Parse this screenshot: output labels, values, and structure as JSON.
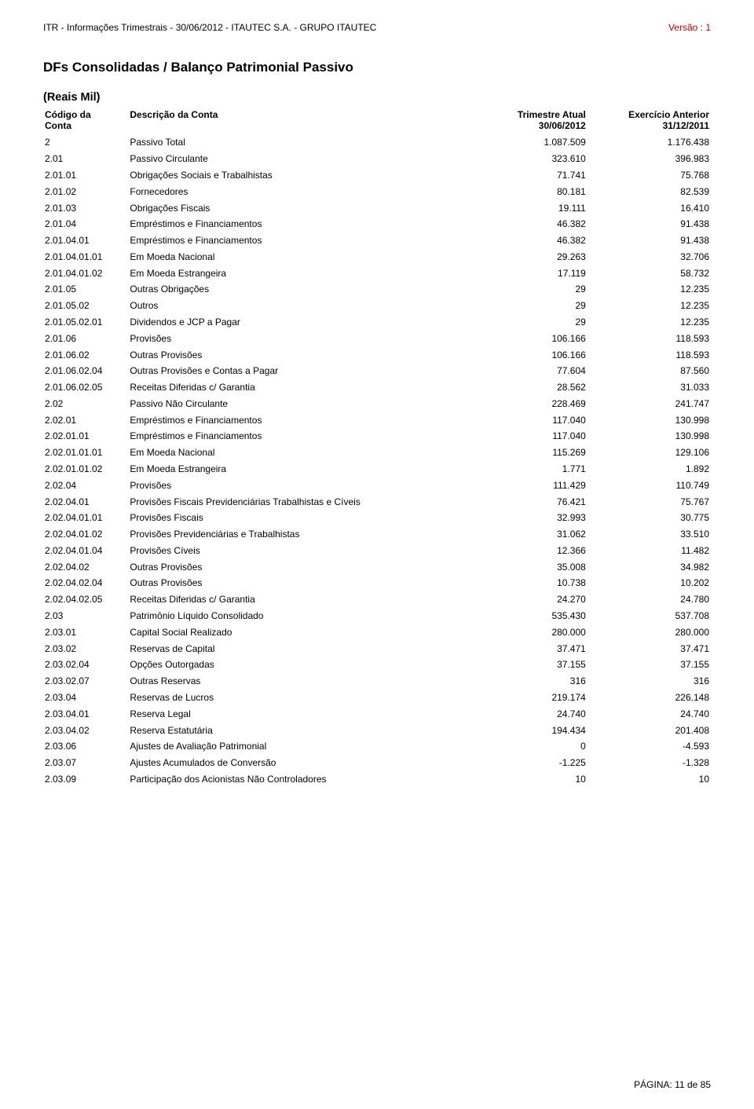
{
  "header": {
    "left": "ITR - Informações Trimestrais - 30/06/2012 - ITAUTEC S.A. - GRUPO ITAUTEC",
    "right": "Versão : 1",
    "right_color": "#c00000"
  },
  "section_title": "DFs Consolidadas / Balanço Patrimonial Passivo",
  "sub_title": "(Reais Mil)",
  "columns": {
    "code_l1": "Código da",
    "code_l2": "Conta",
    "desc": "Descrição da Conta",
    "cur_l1": "Trimestre Atual",
    "cur_l2": "30/06/2012",
    "prev_l1": "Exercício Anterior",
    "prev_l2": "31/12/2011"
  },
  "rows": [
    {
      "c": "2",
      "d": "Passivo Total",
      "a": "1.087.509",
      "b": "1.176.438"
    },
    {
      "c": "2.01",
      "d": "Passivo Circulante",
      "a": "323.610",
      "b": "396.983"
    },
    {
      "c": "2.01.01",
      "d": "Obrigações Sociais e Trabalhistas",
      "a": "71.741",
      "b": "75.768"
    },
    {
      "c": "2.01.02",
      "d": "Fornecedores",
      "a": "80.181",
      "b": "82.539"
    },
    {
      "c": "2.01.03",
      "d": "Obrigações Fiscais",
      "a": "19.111",
      "b": "16.410"
    },
    {
      "c": "2.01.04",
      "d": "Empréstimos e Financiamentos",
      "a": "46.382",
      "b": "91.438"
    },
    {
      "c": "2.01.04.01",
      "d": "Empréstimos e Financiamentos",
      "a": "46.382",
      "b": "91.438"
    },
    {
      "c": "2.01.04.01.01",
      "d": "Em Moeda Nacional",
      "a": "29.263",
      "b": "32.706"
    },
    {
      "c": "2.01.04.01.02",
      "d": "Em Moeda Estrangeira",
      "a": "17.119",
      "b": "58.732"
    },
    {
      "c": "2.01.05",
      "d": "Outras Obrigações",
      "a": "29",
      "b": "12.235"
    },
    {
      "c": "2.01.05.02",
      "d": "Outros",
      "a": "29",
      "b": "12.235"
    },
    {
      "c": "2.01.05.02.01",
      "d": "Dividendos e JCP a Pagar",
      "a": "29",
      "b": "12.235"
    },
    {
      "c": "2.01.06",
      "d": "Provisões",
      "a": "106.166",
      "b": "118.593"
    },
    {
      "c": "2.01.06.02",
      "d": "Outras Provisões",
      "a": "106.166",
      "b": "118.593"
    },
    {
      "c": "2.01.06.02.04",
      "d": "Outras Provisões e Contas a Pagar",
      "a": "77.604",
      "b": "87.560"
    },
    {
      "c": "2.01.06.02.05",
      "d": "Receitas Diferidas c/ Garantia",
      "a": "28.562",
      "b": "31.033"
    },
    {
      "c": "2.02",
      "d": "Passivo Não Circulante",
      "a": "228.469",
      "b": "241.747"
    },
    {
      "c": "2.02.01",
      "d": "Empréstimos e Financiamentos",
      "a": "117.040",
      "b": "130.998"
    },
    {
      "c": "2.02.01.01",
      "d": "Empréstimos e Financiamentos",
      "a": "117.040",
      "b": "130.998"
    },
    {
      "c": "2.02.01.01.01",
      "d": "Em Moeda Nacional",
      "a": "115.269",
      "b": "129.106"
    },
    {
      "c": "2.02.01.01.02",
      "d": "Em Moeda Estrangeira",
      "a": "1.771",
      "b": "1.892"
    },
    {
      "c": "2.02.04",
      "d": "Provisões",
      "a": "111.429",
      "b": "110.749"
    },
    {
      "c": "2.02.04.01",
      "d": "Provisões Fiscais Previdenciárias Trabalhistas e Cíveis",
      "a": "76.421",
      "b": "75.767"
    },
    {
      "c": "2.02.04.01.01",
      "d": "Provisões Fiscais",
      "a": "32.993",
      "b": "30.775"
    },
    {
      "c": "2.02.04.01.02",
      "d": "Provisões Previdenciárias e Trabalhistas",
      "a": "31.062",
      "b": "33.510"
    },
    {
      "c": "2.02.04.01.04",
      "d": "Provisões Cíveis",
      "a": "12.366",
      "b": "11.482"
    },
    {
      "c": "2.02.04.02",
      "d": "Outras Provisões",
      "a": "35.008",
      "b": "34.982"
    },
    {
      "c": "2.02.04.02.04",
      "d": "Outras Provisões",
      "a": "10.738",
      "b": "10.202"
    },
    {
      "c": "2.02.04.02.05",
      "d": "Receitas Diferidas c/ Garantia",
      "a": "24.270",
      "b": "24.780"
    },
    {
      "c": "2.03",
      "d": "Patrimônio Líquido Consolidado",
      "a": "535.430",
      "b": "537.708"
    },
    {
      "c": "2.03.01",
      "d": "Capital Social Realizado",
      "a": "280.000",
      "b": "280.000"
    },
    {
      "c": "2.03.02",
      "d": "Reservas de Capital",
      "a": "37.471",
      "b": "37.471"
    },
    {
      "c": "2.03.02.04",
      "d": "Opções Outorgadas",
      "a": "37.155",
      "b": "37.155"
    },
    {
      "c": "2.03.02.07",
      "d": "Outras Reservas",
      "a": "316",
      "b": "316"
    },
    {
      "c": "2.03.04",
      "d": "Reservas de Lucros",
      "a": "219.174",
      "b": "226.148"
    },
    {
      "c": "2.03.04.01",
      "d": "Reserva Legal",
      "a": "24.740",
      "b": "24.740"
    },
    {
      "c": "2.03.04.02",
      "d": "Reserva Estatutária",
      "a": "194.434",
      "b": "201.408"
    },
    {
      "c": "2.03.06",
      "d": "Ajustes de Avaliação Patrimonial",
      "a": "0",
      "b": "-4.593"
    },
    {
      "c": "2.03.07",
      "d": "Ajustes Acumulados de Conversão",
      "a": "-1.225",
      "b": "-1.328"
    },
    {
      "c": "2.03.09",
      "d": "Participação dos Acionistas Não Controladores",
      "a": "10",
      "b": "10"
    }
  ],
  "footer": "PÁGINA: 11 de 85"
}
